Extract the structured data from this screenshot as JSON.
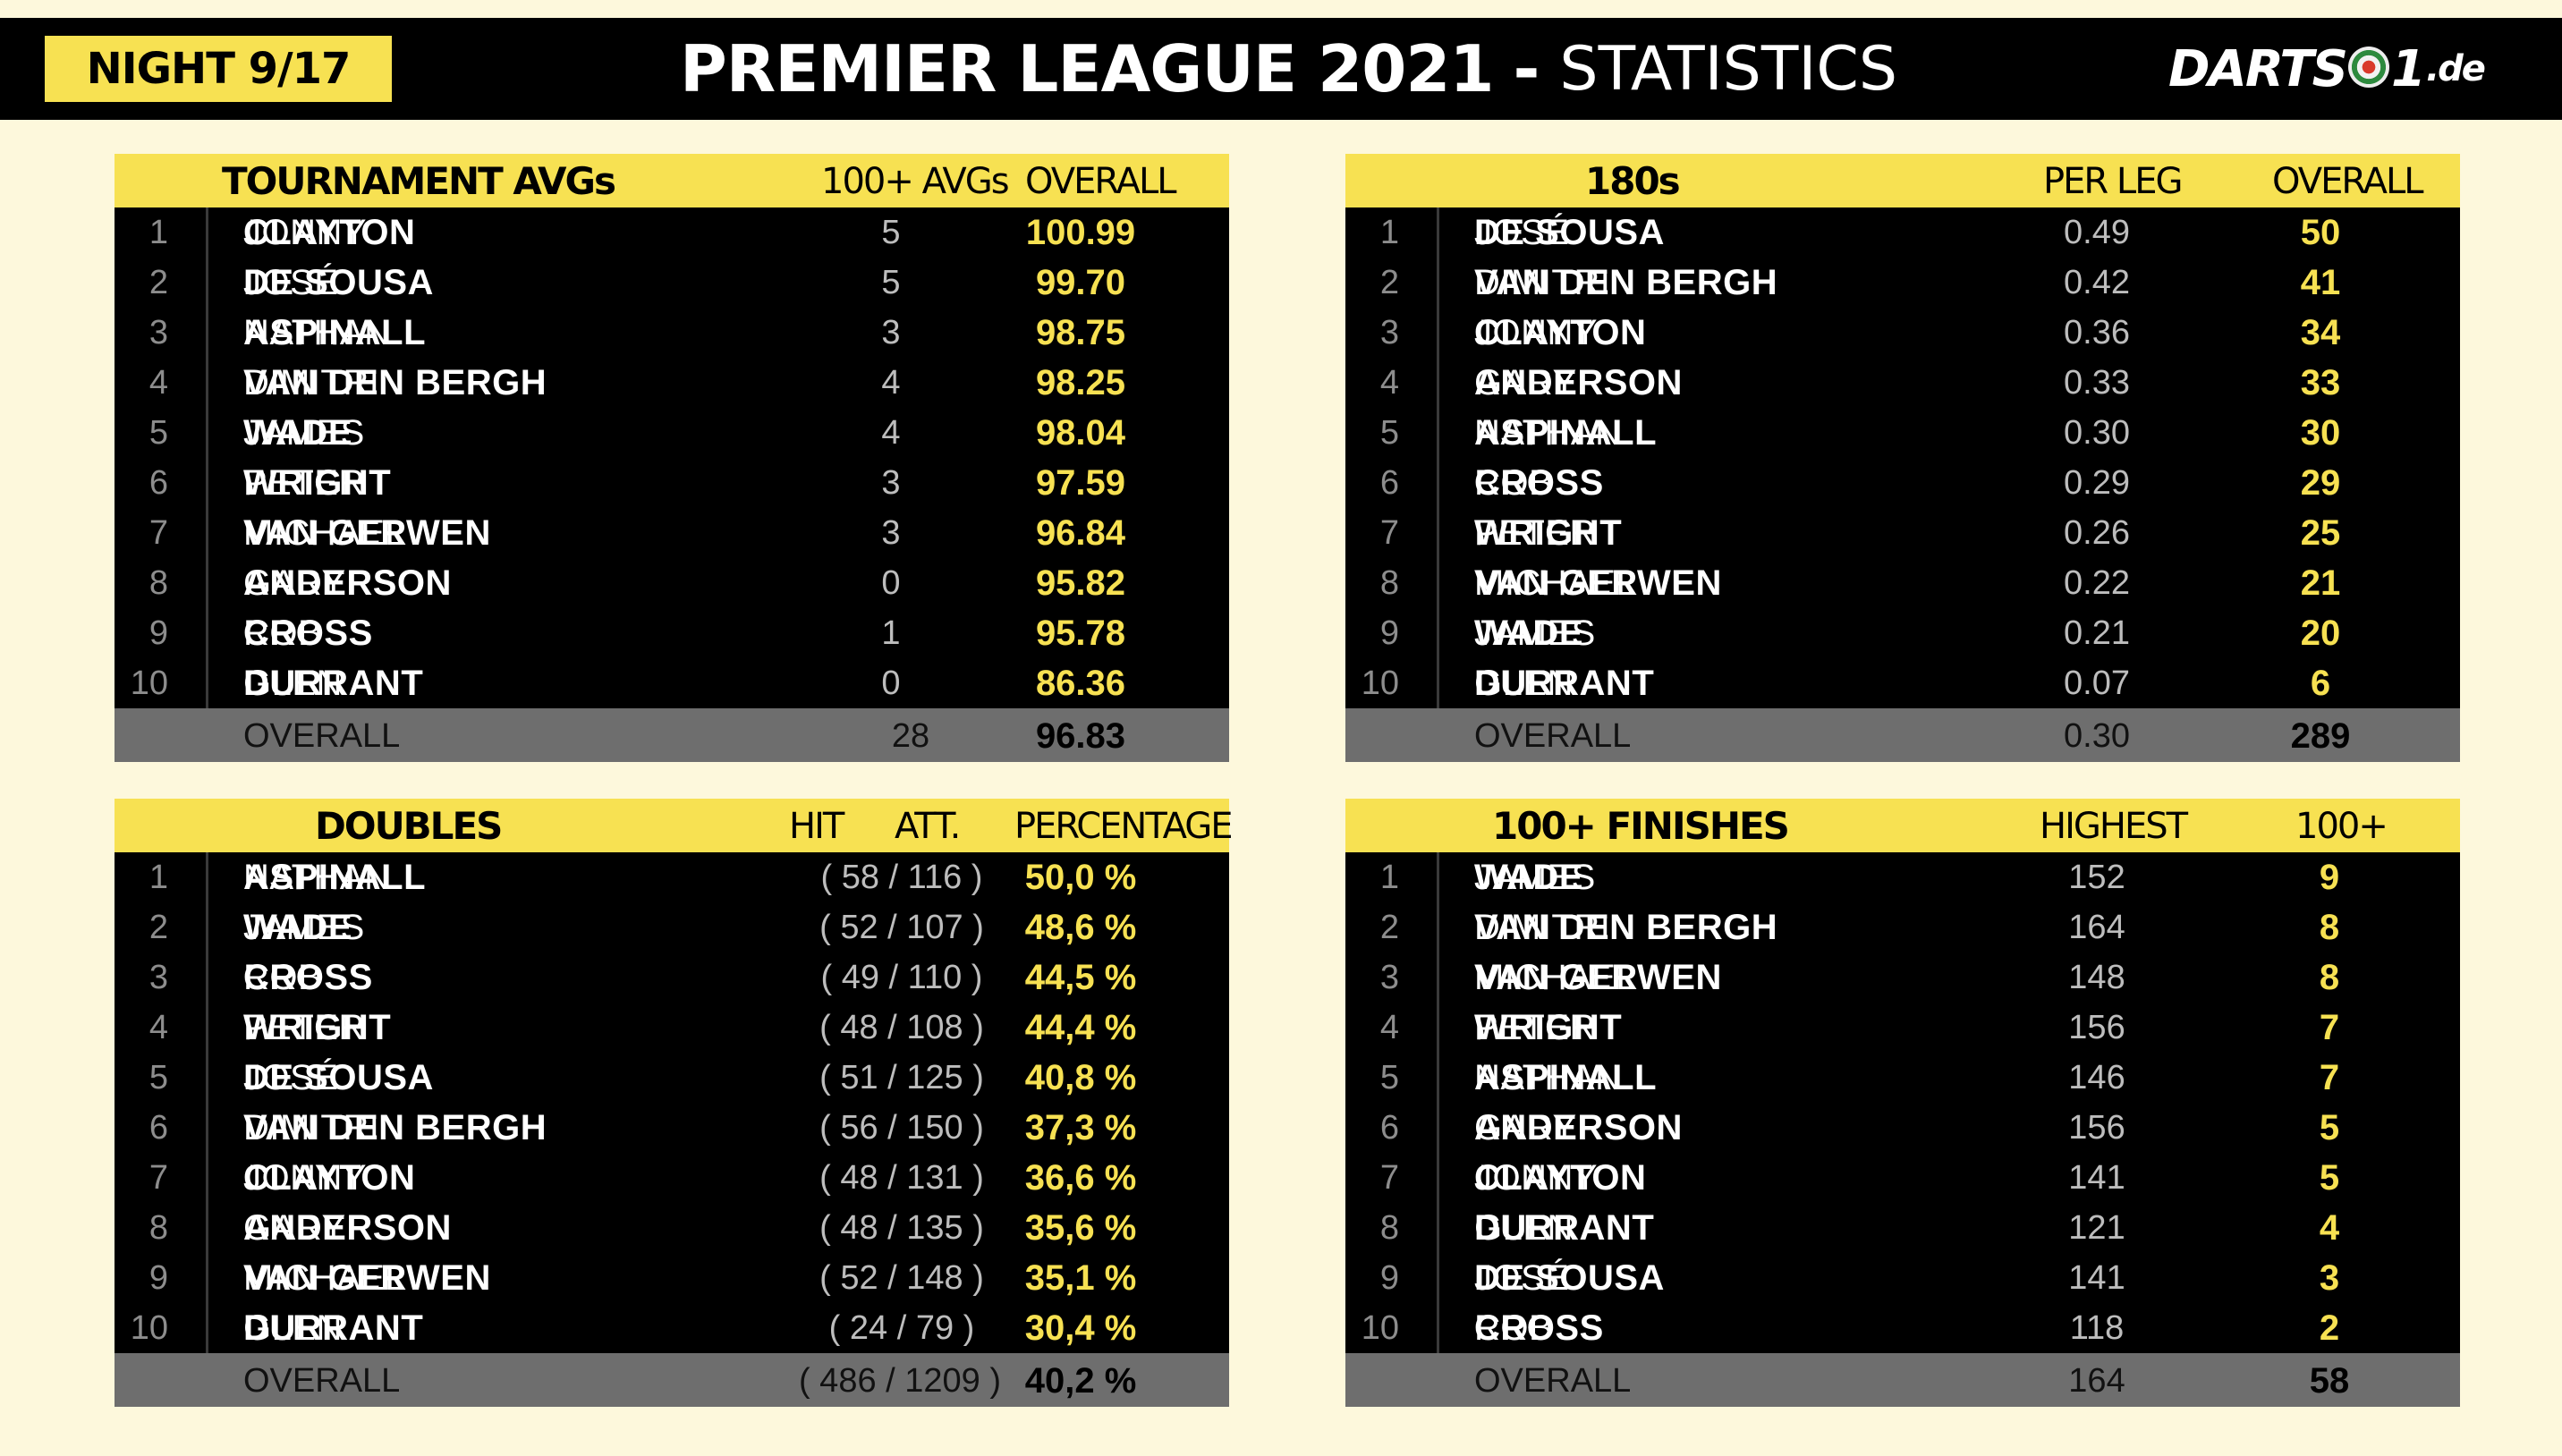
{
  "header": {
    "night": "NIGHT 9/17",
    "title_bold": "PREMIER LEAGUE 2021",
    "title_dash": "-",
    "title_light": "STATISTICS",
    "logo_left": "DARTS",
    "logo_right": "1",
    "logo_tld": ".de"
  },
  "panels": {
    "avgs": {
      "title": "TOURNAMENT AVGs",
      "col1": "100+ AVGs",
      "col2": "OVERALL",
      "rows": [
        {
          "rank": "1",
          "first": "JONNY",
          "last": "CLAYTON",
          "c1": "5",
          "c2": "100.99"
        },
        {
          "rank": "2",
          "first": "JOSÉ",
          "last": "DE SOUSA",
          "c1": "5",
          "c2": "99.70"
        },
        {
          "rank": "3",
          "first": "NATHAN",
          "last": "ASPINALL",
          "c1": "3",
          "c2": "98.75"
        },
        {
          "rank": "4",
          "first": "DIMITRI",
          "last": "VAN DEN BERGH",
          "c1": "4",
          "c2": "98.25"
        },
        {
          "rank": "5",
          "first": "JAMES",
          "last": "WADE",
          "c1": "4",
          "c2": "98.04"
        },
        {
          "rank": "6",
          "first": "PETER",
          "last": "WRIGHT",
          "c1": "3",
          "c2": "97.59"
        },
        {
          "rank": "7",
          "first": "MICHAEL",
          "last": "VAN GERWEN",
          "c1": "3",
          "c2": "96.84"
        },
        {
          "rank": "8",
          "first": "GARY",
          "last": "ANDERSON",
          "c1": "0",
          "c2": "95.82"
        },
        {
          "rank": "9",
          "first": "ROB",
          "last": "CROSS",
          "c1": "1",
          "c2": "95.78"
        },
        {
          "rank": "10",
          "first": "GLEN",
          "last": "DURRANT",
          "c1": "0",
          "c2": "86.36"
        }
      ],
      "total": {
        "label": "OVERALL",
        "t1": "28",
        "t2": "96.83"
      }
    },
    "one80s": {
      "title": "180s",
      "col1": "PER LEG",
      "col2": "OVERALL",
      "rows": [
        {
          "rank": "1",
          "first": "JOSÉ",
          "last": "DE SOUSA",
          "c1": "0.49",
          "c2": "50"
        },
        {
          "rank": "2",
          "first": "DIMITRI",
          "last": "VAN DEN BERGH",
          "c1": "0.42",
          "c2": "41"
        },
        {
          "rank": "3",
          "first": "JONNY",
          "last": "CLAYTON",
          "c1": "0.36",
          "c2": "34"
        },
        {
          "rank": "4",
          "first": "GARY",
          "last": "ANDERSON",
          "c1": "0.33",
          "c2": "33"
        },
        {
          "rank": "5",
          "first": "NATHAN",
          "last": "ASPINALL",
          "c1": "0.30",
          "c2": "30"
        },
        {
          "rank": "6",
          "first": "ROB",
          "last": "CROSS",
          "c1": "0.29",
          "c2": "29"
        },
        {
          "rank": "7",
          "first": "PETER",
          "last": "WRIGHT",
          "c1": "0.26",
          "c2": "25"
        },
        {
          "rank": "8",
          "first": "MICHAEL",
          "last": "VAN GERWEN",
          "c1": "0.22",
          "c2": "21"
        },
        {
          "rank": "9",
          "first": "JAMES",
          "last": "WADE",
          "c1": "0.21",
          "c2": "20"
        },
        {
          "rank": "10",
          "first": "GLEN",
          "last": "DURRANT",
          "c1": "0.07",
          "c2": "6"
        }
      ],
      "total": {
        "label": "OVERALL",
        "t1": "0.30",
        "t2": "289"
      }
    },
    "doubles": {
      "title": "DOUBLES",
      "col1a": "HIT",
      "col1b": "ATT.",
      "col2": "PERCENTAGE",
      "rows": [
        {
          "rank": "1",
          "first": "NATHAN",
          "last": "ASPINALL",
          "c1": "( 58 / 116 )",
          "c2": "50,0 %"
        },
        {
          "rank": "2",
          "first": "JAMES",
          "last": "WADE",
          "c1": "( 52 / 107 )",
          "c2": "48,6 %"
        },
        {
          "rank": "3",
          "first": "ROB",
          "last": "CROSS",
          "c1": "( 49 / 110 )",
          "c2": "44,5 %"
        },
        {
          "rank": "4",
          "first": "PETER",
          "last": "WRIGHT",
          "c1": "( 48 / 108 )",
          "c2": "44,4 %"
        },
        {
          "rank": "5",
          "first": "JOSÉ",
          "last": "DE SOUSA",
          "c1": "( 51 / 125 )",
          "c2": "40,8 %"
        },
        {
          "rank": "6",
          "first": "DIMITRI",
          "last": "VAN DEN BERGH",
          "c1": "( 56 / 150 )",
          "c2": "37,3 %"
        },
        {
          "rank": "7",
          "first": "JONNY",
          "last": "CLAYTON",
          "c1": "( 48 / 131 )",
          "c2": "36,6 %"
        },
        {
          "rank": "8",
          "first": "GARY",
          "last": "ANDERSON",
          "c1": "( 48 / 135 )",
          "c2": "35,6 %"
        },
        {
          "rank": "9",
          "first": "MICHAEL",
          "last": "VAN GERWEN",
          "c1": "( 52 / 148 )",
          "c2": "35,1 %"
        },
        {
          "rank": "10",
          "first": "GLEN",
          "last": "DURRANT",
          "c1": "( 24 / 79 )",
          "c2": "30,4 %"
        }
      ],
      "total": {
        "label": "OVERALL",
        "t1": "( 486 / 1209 )",
        "t2": "40,2 %"
      }
    },
    "finishes": {
      "title": "100+ FINISHES",
      "col1": "HIGHEST",
      "col2": "100+",
      "rows": [
        {
          "rank": "1",
          "first": "JAMES",
          "last": "WADE",
          "c1": "152",
          "c2": "9"
        },
        {
          "rank": "2",
          "first": "DIMITRI",
          "last": "VAN DEN BERGH",
          "c1": "164",
          "c2": "8"
        },
        {
          "rank": "3",
          "first": "MICHAEL",
          "last": "VAN GERWEN",
          "c1": "148",
          "c2": "8"
        },
        {
          "rank": "4",
          "first": "PETER",
          "last": "WRIGHT",
          "c1": "156",
          "c2": "7"
        },
        {
          "rank": "5",
          "first": "NATHAN",
          "last": "ASPINALL",
          "c1": "146",
          "c2": "7"
        },
        {
          "rank": "6",
          "first": "GARY",
          "last": "ANDERSON",
          "c1": "156",
          "c2": "5"
        },
        {
          "rank": "7",
          "first": "JONNY",
          "last": "CLAYTON",
          "c1": "141",
          "c2": "5"
        },
        {
          "rank": "8",
          "first": "GLEN",
          "last": "DURRANT",
          "c1": "121",
          "c2": "4"
        },
        {
          "rank": "9",
          "first": "JOSÉ",
          "last": "DE SOUSA",
          "c1": "141",
          "c2": "3"
        },
        {
          "rank": "10",
          "first": "ROB",
          "last": "CROSS",
          "c1": "118",
          "c2": "2"
        }
      ],
      "total": {
        "label": "OVERALL",
        "t1": "164",
        "t2": "58"
      }
    }
  },
  "colors": {
    "accent_yellow": "#f7e152",
    "background": "#fdf8dc",
    "panel_black": "#000000",
    "total_gray": "#6e6e6e"
  }
}
